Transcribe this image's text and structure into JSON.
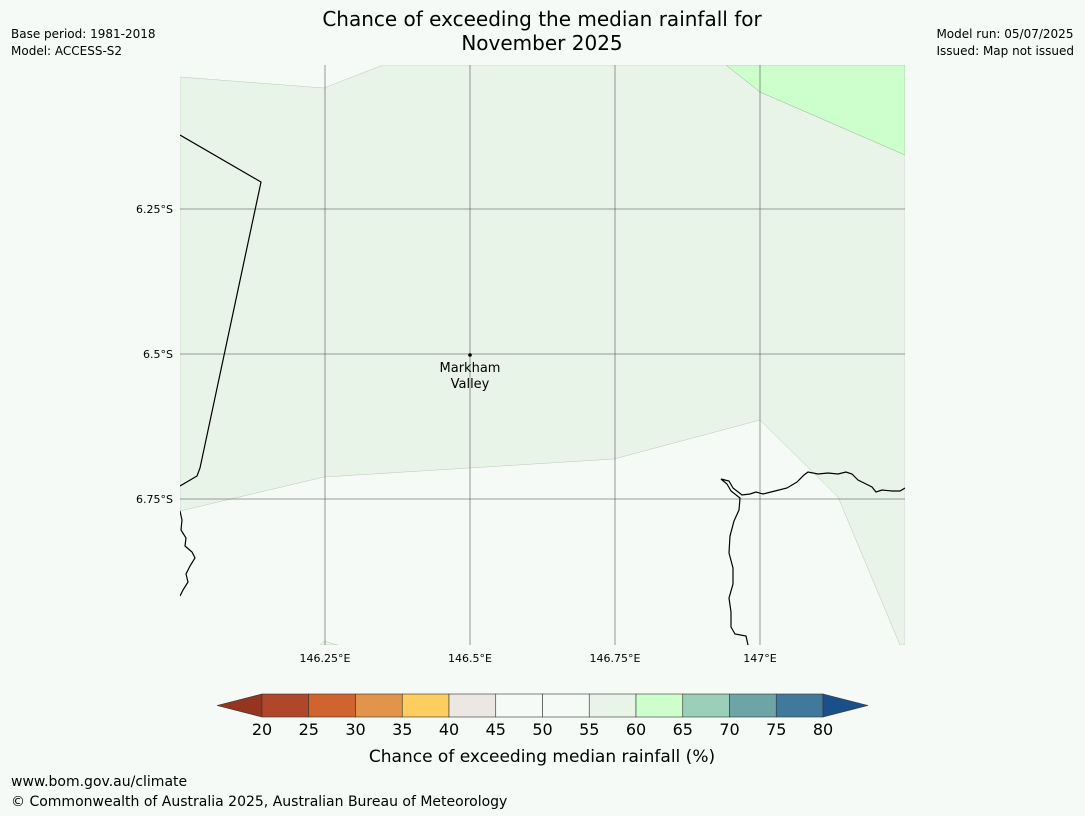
{
  "title_line1": "Chance of exceeding the median rainfall for",
  "title_line2": "November 2025",
  "meta_left": {
    "base_period": "Base period: 1981-2018",
    "model": "Model: ACCESS-S2"
  },
  "meta_right": {
    "model_run": "Model run: 05/07/2025",
    "issued": "Issued: Map not issued"
  },
  "map": {
    "lat_labels": [
      "6.25°S",
      "6.5°S",
      "6.75°S"
    ],
    "lon_labels": [
      "146.25°E",
      "146.5°E",
      "146.75°E",
      "147°E"
    ],
    "place": {
      "line1": "Markham",
      "line2": "Valley"
    },
    "extent": {
      "lon_min": 146.0,
      "lon_max": 147.25,
      "lat_north": -6.02,
      "lat_south": -7.02
    },
    "zone_colors": {
      "55_60": "#e8f4e8",
      "60_65": "#ccffcc",
      "50_55": "#f5faf6"
    }
  },
  "colorbar": {
    "ticks": [
      "20",
      "25",
      "30",
      "35",
      "40",
      "45",
      "50",
      "55",
      "60",
      "65",
      "70",
      "75",
      "80"
    ],
    "colors": [
      "#b0472a",
      "#d0642e",
      "#e2954a",
      "#fecd60",
      "#ebe7e3",
      "#f5faf6",
      "#f5faf6",
      "#e8f4e8",
      "#ccffcc",
      "#9ccfb9",
      "#6da5a6",
      "#41799c"
    ],
    "under_color": "#96351f",
    "over_color": "#1a4f8a",
    "label": "Chance of exceeding median rainfall (%)"
  },
  "footer": {
    "url": "www.bom.gov.au/climate",
    "copyright": "© Commonwealth of Australia 2025, Australian Bureau of Meteorology"
  }
}
